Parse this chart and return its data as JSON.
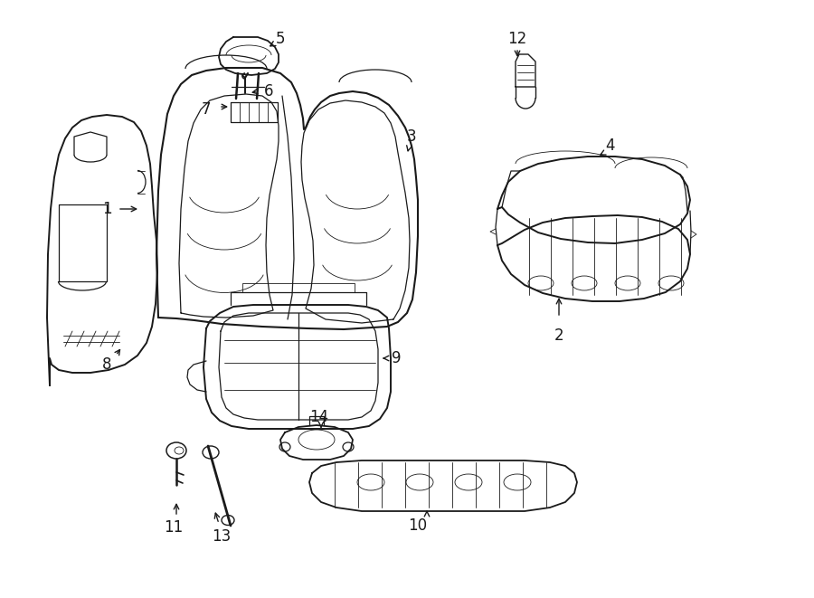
{
  "bg_color": "#ffffff",
  "line_color": "#1a1a1a",
  "lw_main": 1.4,
  "lw_detail": 0.9,
  "lw_thin": 0.6,
  "label_fontsize": 12,
  "figsize": [
    9.0,
    6.61
  ],
  "dpi": 100
}
